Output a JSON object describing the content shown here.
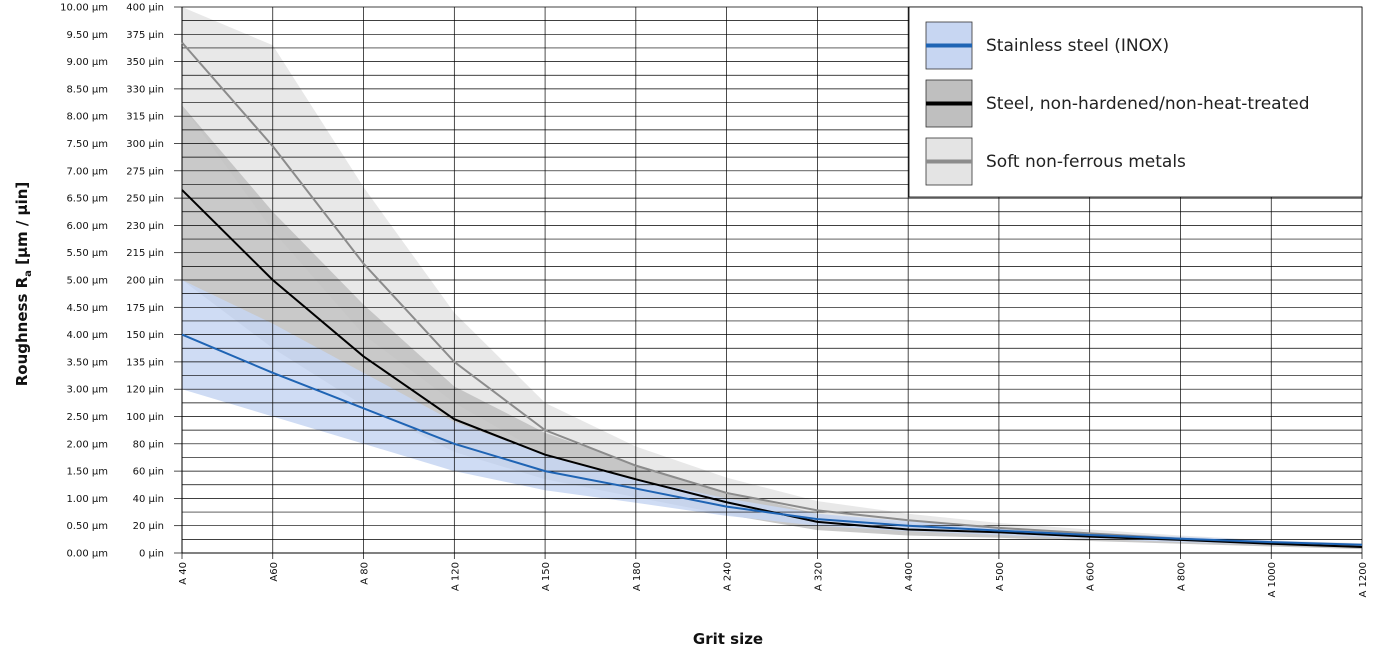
{
  "chart_data": {
    "type": "line",
    "xlabel": "Grit size",
    "ylabel_main": "Roughness R",
    "ylabel_sub": "a",
    "ylabel_tail": " [µm / µin]",
    "categories": [
      "A 40",
      "A60",
      "A 80",
      "A 120",
      "A 150",
      "A 180",
      "A 240",
      "A 320",
      "A 400",
      "A 500",
      "A 600",
      "A 800",
      "A 1000",
      "A 1200"
    ],
    "ylim": [
      0,
      10
    ],
    "yticks": [
      0,
      0.5,
      1,
      1.5,
      2,
      2.5,
      3,
      3.5,
      4,
      4.5,
      5,
      5.5,
      6,
      6.5,
      7,
      7.5,
      8,
      8.5,
      9,
      9.5,
      10
    ],
    "ytick_labels_um": [
      "0.00 µm",
      "0.50 µm",
      "1.00 µm",
      "1.50 µm",
      "2.00 µm",
      "2.50 µm",
      "3.00 µm",
      "3.50 µm",
      "4.00 µm",
      "4.50 µm",
      "5.00 µm",
      "5.50 µm",
      "6.00 µm",
      "6.50 µm",
      "7.00 µm",
      "7.50 µm",
      "8.00 µm",
      "8.50 µm",
      "9.00 µm",
      "9.50 µm",
      "10.00 µm"
    ],
    "ytick_labels_uin": [
      "0 µin",
      "20 µin",
      "40 µin",
      "60 µin",
      "80 µin",
      "100 µin",
      "120 µin",
      "135 µin",
      "150 µin",
      "175 µin",
      "200 µin",
      "215 µin",
      "230 µin",
      "250 µin",
      "275 µin",
      "300 µin",
      "315 µin",
      "330 µin",
      "350 µin",
      "375 µin",
      "400 µin"
    ],
    "grid": true,
    "legend_position": "top-right",
    "series": [
      {
        "name": "Soft non-ferrous metals",
        "color": "#8c8c8c",
        "band_color": "#e4e4e4",
        "values": [
          9.35,
          7.45,
          5.3,
          3.5,
          2.25,
          1.6,
          1.1,
          0.78,
          0.6,
          0.46,
          0.36,
          0.26,
          0.18,
          0.14
        ],
        "band_upper": [
          10.2,
          9.3,
          6.7,
          4.4,
          2.75,
          1.95,
          1.38,
          0.95,
          0.72,
          0.55,
          0.43,
          0.32,
          0.23,
          0.18
        ],
        "band_lower": [
          8.2,
          5.9,
          4.0,
          2.75,
          1.8,
          1.3,
          0.85,
          0.55,
          0.43,
          0.33,
          0.26,
          0.19,
          0.13,
          0.09
        ]
      },
      {
        "name": "Steel, non-hardened/non-heat-treated",
        "color": "#000000",
        "band_color": "#bfbfbf",
        "values": [
          6.65,
          5.0,
          3.6,
          2.45,
          1.8,
          1.35,
          0.93,
          0.57,
          0.43,
          0.38,
          0.3,
          0.24,
          0.17,
          0.11
        ],
        "band_upper": [
          8.2,
          6.25,
          4.55,
          3.05,
          2.2,
          1.62,
          1.12,
          0.72,
          0.54,
          0.47,
          0.37,
          0.29,
          0.21,
          0.15
        ],
        "band_lower": [
          5.0,
          3.75,
          2.7,
          1.85,
          1.35,
          1.02,
          0.7,
          0.42,
          0.32,
          0.28,
          0.22,
          0.17,
          0.12,
          0.07
        ]
      },
      {
        "name": "Stainless steel (INOX)",
        "color": "#1f64b4",
        "band_color": "#c7d6f2",
        "values": [
          4.0,
          3.3,
          2.65,
          2.0,
          1.5,
          1.18,
          0.85,
          0.62,
          0.5,
          0.41,
          0.33,
          0.26,
          0.2,
          0.15
        ],
        "band_upper": [
          5.0,
          4.2,
          3.3,
          2.4,
          1.8,
          1.35,
          1.0,
          0.72,
          0.58,
          0.47,
          0.38,
          0.3,
          0.23,
          0.17
        ],
        "band_lower": [
          3.0,
          2.5,
          2.0,
          1.5,
          1.15,
          0.92,
          0.68,
          0.5,
          0.4,
          0.33,
          0.26,
          0.2,
          0.15,
          0.11
        ]
      }
    ],
    "legend_order": [
      2,
      1,
      0
    ]
  }
}
